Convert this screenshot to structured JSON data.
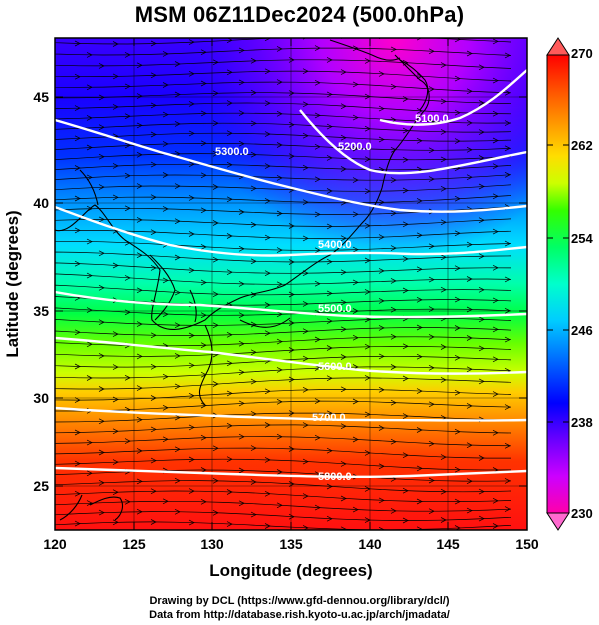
{
  "title": "MSM 06Z11Dec2024 (500.0hPa)",
  "x_axis": {
    "label": "Longitude (degrees)",
    "range": [
      120,
      150
    ],
    "ticks": [
      "120",
      "125",
      "130",
      "135",
      "140",
      "145",
      "150"
    ]
  },
  "y_axis": {
    "label": "Latitude  (degrees)",
    "range": [
      22.4,
      47.6
    ],
    "ticks": [
      "25",
      "30",
      "35",
      "40",
      "45"
    ]
  },
  "colorbar": {
    "range": [
      230,
      270
    ],
    "ticks": [
      "270",
      "262",
      "254",
      "246",
      "238",
      "230"
    ],
    "colors": [
      "#ff00aa",
      "#cc00ff",
      "#6a00ff",
      "#0000ff",
      "#0066ff",
      "#00ccff",
      "#00ffcc",
      "#00ff66",
      "#33ff00",
      "#ccff00",
      "#ffdd00",
      "#ff9900",
      "#ff5500",
      "#ff0000",
      "#dd0000"
    ]
  },
  "contours": [
    {
      "label": "5100.0"
    },
    {
      "label": "5200.0"
    },
    {
      "label": "5300.0"
    },
    {
      "label": "5400.0"
    },
    {
      "label": "5500.0"
    },
    {
      "label": "5600.0"
    },
    {
      "label": "5700.0"
    },
    {
      "label": "5800.0"
    }
  ],
  "credit_line1": "Drawing by DCL (https://www.gfd-dennou.org/library/dcl/)",
  "credit_line2": "Data from http://database.rish.kyoto-u.ac.jp/arch/jmadata/"
}
